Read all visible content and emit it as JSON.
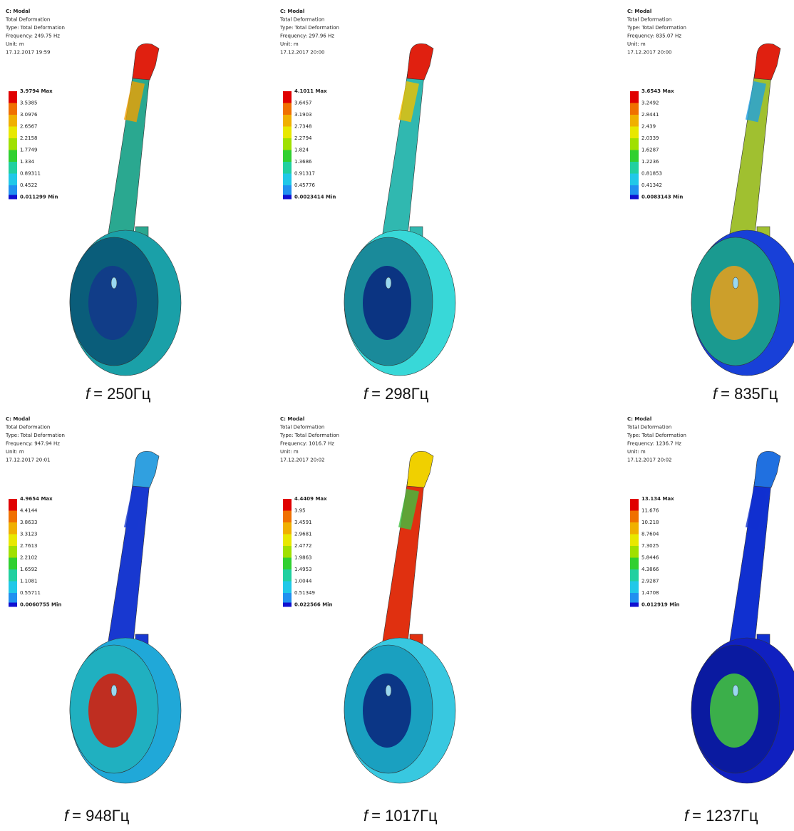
{
  "panels": [
    {
      "header": [
        "C: Modal",
        "Total Deformation",
        "Type: Total Deformation",
        "Frequency: 249.75 Hz",
        "Unit: m",
        "17.12.2017 19:59"
      ],
      "legend": [
        "3.9794 Max",
        "3.5385",
        "3.0976",
        "2.6567",
        "2.2158",
        "1.7749",
        "1.334",
        "0.89311",
        "0.4522",
        "0.011299 Min"
      ],
      "caption": {
        "symbol": "f",
        "text": "= 250Гц"
      }
    },
    {
      "header": [
        "C: Modal",
        "Total Deformation",
        "Type: Total Deformation",
        "Frequency: 297.96 Hz",
        "Unit: m",
        "17.12.2017 20:00"
      ],
      "legend": [
        "4.1011 Max",
        "3.6457",
        "3.1903",
        "2.7348",
        "2.2794",
        "1.824",
        "1.3686",
        "0.91317",
        "0.45776",
        "0.0023414 Min"
      ],
      "caption": {
        "symbol": "f",
        "text": "= 298Гц"
      }
    },
    {
      "header": [
        "C: Modal",
        "Total Deformation",
        "Type: Total Deformation",
        "Frequency: 835.07 Hz",
        "Unit: m",
        "17.12.2017 20:00"
      ],
      "legend": [
        "3.6543 Max",
        "3.2492",
        "2.8441",
        "2.439",
        "2.0339",
        "1.6287",
        "1.2236",
        "0.81853",
        "0.41342",
        "0.0083143 Min"
      ],
      "caption": {
        "symbol": "f",
        "text": "= 835Гц"
      }
    },
    {
      "header": [
        "C: Modal",
        "Total Deformation",
        "Type: Total Deformation",
        "Frequency: 947.94 Hz",
        "Unit: m",
        "17.12.2017 20:01"
      ],
      "legend": [
        "4.9654 Max",
        "4.4144",
        "3.8633",
        "3.3123",
        "2.7613",
        "2.2102",
        "1.6592",
        "1.1081",
        "0.55711",
        "0.0060755 Min"
      ],
      "caption": {
        "symbol": "f",
        "text": "= 948Гц"
      }
    },
    {
      "header": [
        "C: Modal",
        "Total Deformation",
        "Type: Total Deformation",
        "Frequency: 1016.7 Hz",
        "Unit: m",
        "17.12.2017 20:02"
      ],
      "legend": [
        "4.4409 Max",
        "3.95",
        "3.4591",
        "2.9681",
        "2.4772",
        "1.9863",
        "1.4953",
        "1.0044",
        "0.51349",
        "0.022566 Min"
      ],
      "caption": {
        "symbol": "f",
        "text": "= 1017Гц"
      }
    },
    {
      "header": [
        "C: Modal",
        "Total Deformation",
        "Type: Total Deformation",
        "Frequency: 1236.7 Hz",
        "Unit: m",
        "17.12.2017 20:02"
      ],
      "legend": [
        "13.134 Max",
        "11.676",
        "10.218",
        "8.7604",
        "7.3025",
        "5.8446",
        "4.3866",
        "2.9287",
        "1.4708",
        "0.012919 Min"
      ],
      "caption": {
        "symbol": "f",
        "text": "= 1237Гц"
      }
    }
  ]
}
